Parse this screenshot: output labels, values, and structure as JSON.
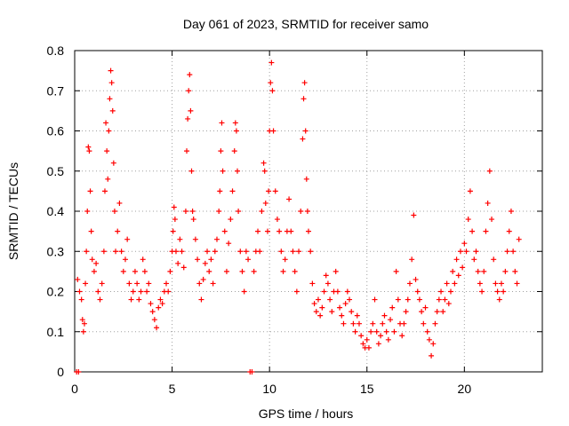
{
  "chart_data": {
    "type": "scatter",
    "title": "Day 061 of 2023, SRMTID for receiver samo",
    "xlabel": "GPS time / hours",
    "ylabel": "SRMTID / TECUs",
    "xlim": [
      0,
      24
    ],
    "ylim": [
      0,
      0.8
    ],
    "x_ticks": [
      0,
      5,
      10,
      15,
      20
    ],
    "x_tick_labels": [
      "0",
      "5",
      "10",
      "15",
      "20"
    ],
    "y_ticks": [
      0,
      0.1,
      0.2,
      0.3,
      0.4,
      0.5,
      0.6,
      0.7,
      0.8
    ],
    "y_tick_labels": [
      "0",
      "0.1",
      "0.2",
      "0.3",
      "0.4",
      "0.5",
      "0.6",
      "0.7",
      "0.8"
    ],
    "grid": true,
    "marker": "plus",
    "series": [
      {
        "name": "SRMTID",
        "color": "#ff0000",
        "points": [
          [
            0.1,
            0.0
          ],
          [
            0.2,
            0.0
          ],
          [
            0.15,
            0.23
          ],
          [
            0.25,
            0.2
          ],
          [
            0.35,
            0.18
          ],
          [
            0.4,
            0.13
          ],
          [
            0.45,
            0.1
          ],
          [
            0.5,
            0.12
          ],
          [
            0.55,
            0.22
          ],
          [
            0.6,
            0.3
          ],
          [
            0.65,
            0.4
          ],
          [
            0.7,
            0.56
          ],
          [
            0.75,
            0.55
          ],
          [
            0.8,
            0.45
          ],
          [
            0.85,
            0.35
          ],
          [
            0.9,
            0.28
          ],
          [
            1.0,
            0.25
          ],
          [
            1.1,
            0.27
          ],
          [
            1.2,
            0.2
          ],
          [
            1.3,
            0.18
          ],
          [
            1.4,
            0.22
          ],
          [
            1.5,
            0.3
          ],
          [
            1.55,
            0.45
          ],
          [
            1.6,
            0.62
          ],
          [
            1.65,
            0.55
          ],
          [
            1.7,
            0.48
          ],
          [
            1.75,
            0.6
          ],
          [
            1.8,
            0.68
          ],
          [
            1.85,
            0.75
          ],
          [
            1.9,
            0.72
          ],
          [
            1.95,
            0.65
          ],
          [
            2.0,
            0.52
          ],
          [
            2.05,
            0.4
          ],
          [
            2.1,
            0.3
          ],
          [
            2.2,
            0.35
          ],
          [
            2.3,
            0.42
          ],
          [
            2.4,
            0.3
          ],
          [
            2.5,
            0.25
          ],
          [
            2.6,
            0.28
          ],
          [
            2.7,
            0.33
          ],
          [
            2.8,
            0.22
          ],
          [
            2.9,
            0.18
          ],
          [
            3.0,
            0.2
          ],
          [
            3.1,
            0.25
          ],
          [
            3.2,
            0.22
          ],
          [
            3.3,
            0.18
          ],
          [
            3.4,
            0.2
          ],
          [
            3.5,
            0.28
          ],
          [
            3.6,
            0.25
          ],
          [
            3.7,
            0.2
          ],
          [
            3.8,
            0.22
          ],
          [
            3.9,
            0.17
          ],
          [
            4.0,
            0.15
          ],
          [
            4.1,
            0.13
          ],
          [
            4.2,
            0.11
          ],
          [
            4.3,
            0.16
          ],
          [
            4.4,
            0.18
          ],
          [
            4.5,
            0.17
          ],
          [
            4.6,
            0.2
          ],
          [
            4.7,
            0.22
          ],
          [
            4.8,
            0.2
          ],
          [
            4.9,
            0.25
          ],
          [
            5.0,
            0.3
          ],
          [
            5.05,
            0.35
          ],
          [
            5.1,
            0.41
          ],
          [
            5.15,
            0.38
          ],
          [
            5.2,
            0.3
          ],
          [
            5.3,
            0.27
          ],
          [
            5.4,
            0.33
          ],
          [
            5.5,
            0.3
          ],
          [
            5.6,
            0.26
          ],
          [
            5.7,
            0.4
          ],
          [
            5.75,
            0.55
          ],
          [
            5.8,
            0.63
          ],
          [
            5.85,
            0.7
          ],
          [
            5.9,
            0.74
          ],
          [
            5.95,
            0.65
          ],
          [
            6.0,
            0.5
          ],
          [
            6.05,
            0.4
          ],
          [
            6.1,
            0.38
          ],
          [
            6.2,
            0.33
          ],
          [
            6.3,
            0.28
          ],
          [
            6.4,
            0.22
          ],
          [
            6.5,
            0.18
          ],
          [
            6.6,
            0.23
          ],
          [
            6.7,
            0.27
          ],
          [
            6.8,
            0.3
          ],
          [
            6.9,
            0.25
          ],
          [
            7.0,
            0.28
          ],
          [
            7.1,
            0.22
          ],
          [
            7.2,
            0.3
          ],
          [
            7.3,
            0.33
          ],
          [
            7.4,
            0.4
          ],
          [
            7.45,
            0.45
          ],
          [
            7.5,
            0.55
          ],
          [
            7.55,
            0.62
          ],
          [
            7.6,
            0.5
          ],
          [
            7.7,
            0.35
          ],
          [
            7.8,
            0.25
          ],
          [
            7.9,
            0.32
          ],
          [
            8.0,
            0.38
          ],
          [
            8.1,
            0.45
          ],
          [
            8.2,
            0.55
          ],
          [
            8.25,
            0.62
          ],
          [
            8.3,
            0.6
          ],
          [
            8.35,
            0.5
          ],
          [
            8.4,
            0.4
          ],
          [
            8.5,
            0.3
          ],
          [
            8.6,
            0.25
          ],
          [
            8.7,
            0.2
          ],
          [
            8.8,
            0.3
          ],
          [
            8.9,
            0.28
          ],
          [
            9.0,
            0.0
          ],
          [
            9.1,
            0.0
          ],
          [
            9.2,
            0.25
          ],
          [
            9.3,
            0.3
          ],
          [
            9.4,
            0.35
          ],
          [
            9.5,
            0.3
          ],
          [
            9.6,
            0.4
          ],
          [
            9.7,
            0.52
          ],
          [
            9.75,
            0.5
          ],
          [
            9.8,
            0.42
          ],
          [
            9.9,
            0.35
          ],
          [
            9.95,
            0.45
          ],
          [
            10.0,
            0.6
          ],
          [
            10.05,
            0.72
          ],
          [
            10.1,
            0.77
          ],
          [
            10.15,
            0.7
          ],
          [
            10.2,
            0.6
          ],
          [
            10.3,
            0.45
          ],
          [
            10.4,
            0.38
          ],
          [
            10.5,
            0.35
          ],
          [
            10.6,
            0.3
          ],
          [
            10.7,
            0.25
          ],
          [
            10.8,
            0.28
          ],
          [
            10.9,
            0.35
          ],
          [
            11.0,
            0.43
          ],
          [
            11.1,
            0.35
          ],
          [
            11.2,
            0.3
          ],
          [
            11.3,
            0.25
          ],
          [
            11.4,
            0.2
          ],
          [
            11.5,
            0.3
          ],
          [
            11.6,
            0.4
          ],
          [
            11.7,
            0.58
          ],
          [
            11.75,
            0.68
          ],
          [
            11.8,
            0.72
          ],
          [
            11.85,
            0.6
          ],
          [
            11.9,
            0.48
          ],
          [
            11.95,
            0.4
          ],
          [
            12.0,
            0.35
          ],
          [
            12.1,
            0.3
          ],
          [
            12.2,
            0.22
          ],
          [
            12.3,
            0.17
          ],
          [
            12.4,
            0.15
          ],
          [
            12.5,
            0.18
          ],
          [
            12.6,
            0.14
          ],
          [
            12.7,
            0.16
          ],
          [
            12.8,
            0.2
          ],
          [
            12.9,
            0.24
          ],
          [
            13.0,
            0.22
          ],
          [
            13.1,
            0.18
          ],
          [
            13.2,
            0.15
          ],
          [
            13.3,
            0.2
          ],
          [
            13.4,
            0.25
          ],
          [
            13.5,
            0.2
          ],
          [
            13.6,
            0.16
          ],
          [
            13.7,
            0.14
          ],
          [
            13.8,
            0.12
          ],
          [
            13.9,
            0.17
          ],
          [
            14.0,
            0.2
          ],
          [
            14.1,
            0.18
          ],
          [
            14.2,
            0.15
          ],
          [
            14.3,
            0.12
          ],
          [
            14.4,
            0.1
          ],
          [
            14.5,
            0.14
          ],
          [
            14.6,
            0.12
          ],
          [
            14.7,
            0.09
          ],
          [
            14.8,
            0.07
          ],
          [
            14.9,
            0.06
          ],
          [
            15.0,
            0.08
          ],
          [
            15.1,
            0.06
          ],
          [
            15.2,
            0.1
          ],
          [
            15.3,
            0.12
          ],
          [
            15.4,
            0.18
          ],
          [
            15.5,
            0.1
          ],
          [
            15.6,
            0.07
          ],
          [
            15.7,
            0.09
          ],
          [
            15.8,
            0.12
          ],
          [
            15.9,
            0.14
          ],
          [
            16.0,
            0.1
          ],
          [
            16.1,
            0.08
          ],
          [
            16.2,
            0.13
          ],
          [
            16.3,
            0.16
          ],
          [
            16.4,
            0.1
          ],
          [
            16.5,
            0.25
          ],
          [
            16.6,
            0.18
          ],
          [
            16.7,
            0.12
          ],
          [
            16.8,
            0.09
          ],
          [
            16.9,
            0.12
          ],
          [
            17.0,
            0.15
          ],
          [
            17.1,
            0.18
          ],
          [
            17.2,
            0.22
          ],
          [
            17.3,
            0.28
          ],
          [
            17.4,
            0.39
          ],
          [
            17.5,
            0.23
          ],
          [
            17.6,
            0.2
          ],
          [
            17.7,
            0.18
          ],
          [
            17.8,
            0.15
          ],
          [
            17.9,
            0.12
          ],
          [
            18.0,
            0.16
          ],
          [
            18.1,
            0.1
          ],
          [
            18.2,
            0.08
          ],
          [
            18.3,
            0.04
          ],
          [
            18.4,
            0.07
          ],
          [
            18.5,
            0.12
          ],
          [
            18.6,
            0.15
          ],
          [
            18.7,
            0.18
          ],
          [
            18.8,
            0.2
          ],
          [
            18.9,
            0.15
          ],
          [
            19.0,
            0.18
          ],
          [
            19.1,
            0.22
          ],
          [
            19.2,
            0.17
          ],
          [
            19.3,
            0.2
          ],
          [
            19.4,
            0.25
          ],
          [
            19.5,
            0.22
          ],
          [
            19.6,
            0.28
          ],
          [
            19.7,
            0.24
          ],
          [
            19.8,
            0.3
          ],
          [
            19.9,
            0.26
          ],
          [
            20.0,
            0.32
          ],
          [
            20.1,
            0.3
          ],
          [
            20.2,
            0.38
          ],
          [
            20.3,
            0.45
          ],
          [
            20.4,
            0.35
          ],
          [
            20.5,
            0.28
          ],
          [
            20.6,
            0.3
          ],
          [
            20.7,
            0.25
          ],
          [
            20.8,
            0.22
          ],
          [
            20.9,
            0.2
          ],
          [
            21.0,
            0.25
          ],
          [
            21.1,
            0.35
          ],
          [
            21.2,
            0.42
          ],
          [
            21.3,
            0.5
          ],
          [
            21.4,
            0.38
          ],
          [
            21.5,
            0.28
          ],
          [
            21.6,
            0.22
          ],
          [
            21.7,
            0.2
          ],
          [
            21.8,
            0.18
          ],
          [
            21.9,
            0.22
          ],
          [
            22.0,
            0.2
          ],
          [
            22.1,
            0.25
          ],
          [
            22.2,
            0.3
          ],
          [
            22.3,
            0.35
          ],
          [
            22.4,
            0.4
          ],
          [
            22.5,
            0.3
          ],
          [
            22.6,
            0.25
          ],
          [
            22.7,
            0.22
          ],
          [
            22.8,
            0.33
          ]
        ]
      }
    ]
  }
}
